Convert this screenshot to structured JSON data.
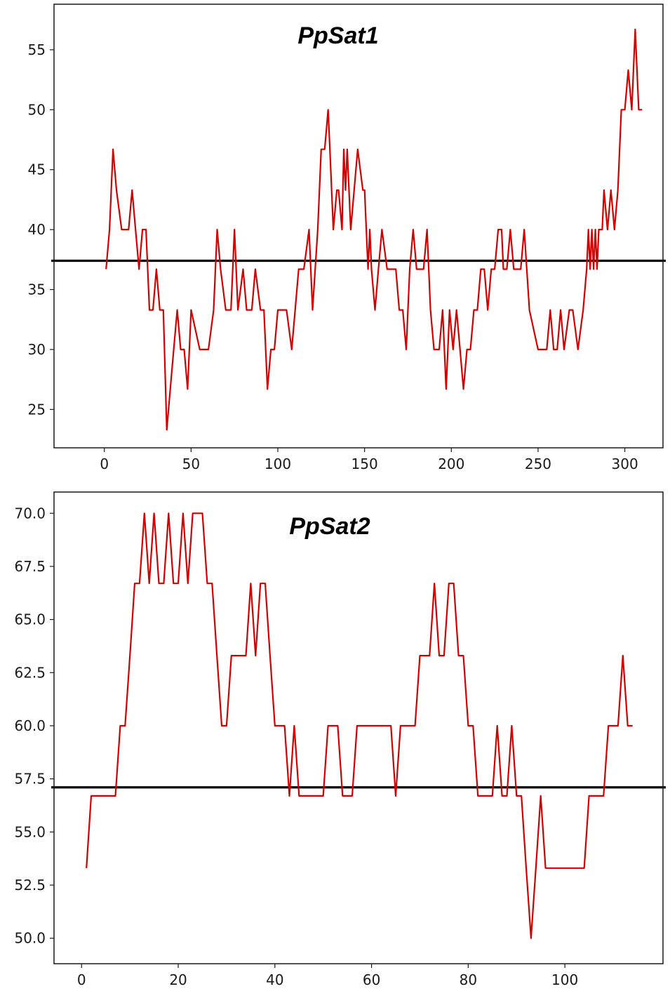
{
  "chart_data": [
    {
      "type": "line",
      "title": "PpSat1",
      "xlim": [
        -29,
        322
      ],
      "ylim": [
        21.8,
        58.8
      ],
      "xticks": [
        0,
        50,
        100,
        150,
        200,
        250,
        300
      ],
      "yticks": [
        25,
        30,
        35,
        40,
        45,
        50,
        55
      ],
      "ytick_labels": [
        "25",
        "30",
        "35",
        "40",
        "45",
        "50",
        "55"
      ],
      "threshold": 37.4,
      "series": [
        {
          "color": "#d40000",
          "x": [
            1,
            3,
            5,
            7,
            10,
            12,
            14,
            16,
            18,
            20,
            22,
            24,
            26,
            28,
            30,
            32,
            34,
            36,
            38,
            40,
            42,
            44,
            46,
            48,
            50,
            55,
            60,
            63,
            65,
            67,
            70,
            73,
            75,
            77,
            80,
            82,
            85,
            87,
            90,
            92,
            94,
            96,
            98,
            100,
            105,
            108,
            110,
            112,
            115,
            118,
            120,
            123,
            125,
            127,
            129,
            130,
            132,
            134,
            135,
            137,
            138,
            139,
            140,
            142,
            144,
            146,
            149,
            150,
            151,
            152,
            153,
            154,
            156,
            158,
            160,
            163,
            166,
            168,
            170,
            172,
            174,
            176,
            178,
            180,
            182,
            184,
            186,
            188,
            190,
            193,
            195,
            197,
            199,
            201,
            203,
            205,
            207,
            209,
            211,
            213,
            215,
            217,
            219,
            221,
            223,
            225,
            227,
            229,
            230,
            232,
            234,
            236,
            238,
            240,
            242,
            245,
            250,
            255,
            257,
            259,
            261,
            263,
            265,
            268,
            270,
            273,
            276,
            278,
            279,
            280,
            281,
            282,
            283,
            284,
            285,
            286,
            287,
            288,
            290,
            292,
            294,
            296,
            298,
            300,
            302,
            304,
            306,
            308,
            310
          ],
          "y": [
            36.7,
            40,
            46.7,
            43.3,
            40,
            40,
            40,
            43.3,
            40,
            36.7,
            40,
            40,
            33.3,
            33.3,
            36.7,
            33.3,
            33.3,
            23.3,
            26.7,
            30,
            33.3,
            30,
            30,
            26.7,
            33.3,
            30,
            30,
            33.3,
            40,
            36.7,
            33.3,
            33.3,
            40,
            33.3,
            36.7,
            33.3,
            33.3,
            36.7,
            33.3,
            33.3,
            26.7,
            30,
            30,
            33.3,
            33.3,
            30,
            33.3,
            36.7,
            36.7,
            40,
            33.3,
            40,
            46.7,
            46.7,
            50,
            46.7,
            40,
            43.3,
            43.3,
            40,
            46.7,
            43.3,
            46.7,
            40,
            43.3,
            46.7,
            43.3,
            43.3,
            40,
            36.7,
            40,
            36.7,
            33.3,
            36.7,
            40,
            36.7,
            36.7,
            36.7,
            33.3,
            33.3,
            30,
            36.7,
            40,
            36.7,
            36.7,
            36.7,
            40,
            33.3,
            30,
            30,
            33.3,
            26.7,
            33.3,
            30,
            33.3,
            30,
            26.7,
            30,
            30,
            33.3,
            33.3,
            36.7,
            36.7,
            33.3,
            36.7,
            36.7,
            40,
            40,
            36.7,
            36.7,
            40,
            36.7,
            36.7,
            36.7,
            40,
            33.3,
            30,
            30,
            33.3,
            30,
            30,
            33.3,
            30,
            33.3,
            33.3,
            30,
            33.3,
            36.7,
            40,
            36.7,
            40,
            36.7,
            40,
            36.7,
            40,
            40,
            40,
            43.3,
            40,
            43.3,
            40,
            43.3,
            50,
            50,
            53.3,
            50,
            56.7,
            50,
            50
          ]
        }
      ]
    },
    {
      "type": "line",
      "title": "PpSat2",
      "xlim": [
        -5.7,
        120.3
      ],
      "ylim": [
        48.8,
        71.0
      ],
      "xticks": [
        0,
        20,
        40,
        60,
        80,
        100
      ],
      "yticks": [
        50,
        52.5,
        55,
        57.5,
        60,
        62.5,
        65,
        67.5,
        70
      ],
      "ytick_labels": [
        "50.0",
        "52.5",
        "55.0",
        "57.5",
        "60.0",
        "62.5",
        "65.0",
        "67.5",
        "70.0"
      ],
      "threshold": 57.1,
      "series": [
        {
          "color": "#d40000",
          "x": [
            1,
            2,
            3,
            4,
            5,
            6,
            7,
            8,
            9,
            10,
            11,
            12,
            13,
            14,
            15,
            16,
            17,
            18,
            19,
            20,
            21,
            22,
            23,
            24,
            25,
            26,
            27,
            28,
            29,
            30,
            31,
            32,
            33,
            34,
            35,
            36,
            37,
            38,
            39,
            40,
            41,
            42,
            43,
            44,
            45,
            46,
            47,
            48,
            49,
            50,
            51,
            52,
            53,
            54,
            55,
            56,
            57,
            58,
            59,
            60,
            61,
            62,
            63,
            64,
            65,
            66,
            67,
            68,
            69,
            70,
            71,
            72,
            73,
            74,
            75,
            76,
            77,
            78,
            79,
            80,
            81,
            82,
            83,
            84,
            85,
            86,
            87,
            88,
            89,
            90,
            91,
            92,
            93,
            94,
            95,
            96,
            97,
            98,
            99,
            100,
            101,
            102,
            103,
            104,
            105,
            106,
            107,
            108,
            109,
            110,
            111,
            112,
            113,
            114
          ],
          "y": [
            53.3,
            56.7,
            56.7,
            56.7,
            56.7,
            56.7,
            56.7,
            60,
            60,
            63.3,
            66.7,
            66.7,
            70,
            66.7,
            70,
            66.7,
            66.7,
            70,
            66.7,
            66.7,
            70,
            66.7,
            70,
            70,
            70,
            66.7,
            66.7,
            63.3,
            60,
            60,
            63.3,
            63.3,
            63.3,
            63.3,
            66.7,
            63.3,
            66.7,
            66.7,
            63.3,
            60,
            60,
            60,
            56.7,
            60,
            56.7,
            56.7,
            56.7,
            56.7,
            56.7,
            56.7,
            60,
            60,
            60,
            56.7,
            56.7,
            56.7,
            60,
            60,
            60,
            60,
            60,
            60,
            60,
            60,
            56.7,
            60,
            60,
            60,
            60,
            63.3,
            63.3,
            63.3,
            66.7,
            63.3,
            63.3,
            66.7,
            66.7,
            63.3,
            63.3,
            60,
            60,
            56.7,
            56.7,
            56.7,
            56.7,
            60,
            56.7,
            56.7,
            60,
            56.7,
            56.7,
            53.3,
            50,
            53.3,
            56.7,
            53.3,
            53.3,
            53.3,
            53.3,
            53.3,
            53.3,
            53.3,
            53.3,
            53.3,
            56.7,
            56.7,
            56.7,
            56.7,
            60,
            60,
            60,
            63.3,
            60,
            60
          ]
        }
      ]
    }
  ]
}
